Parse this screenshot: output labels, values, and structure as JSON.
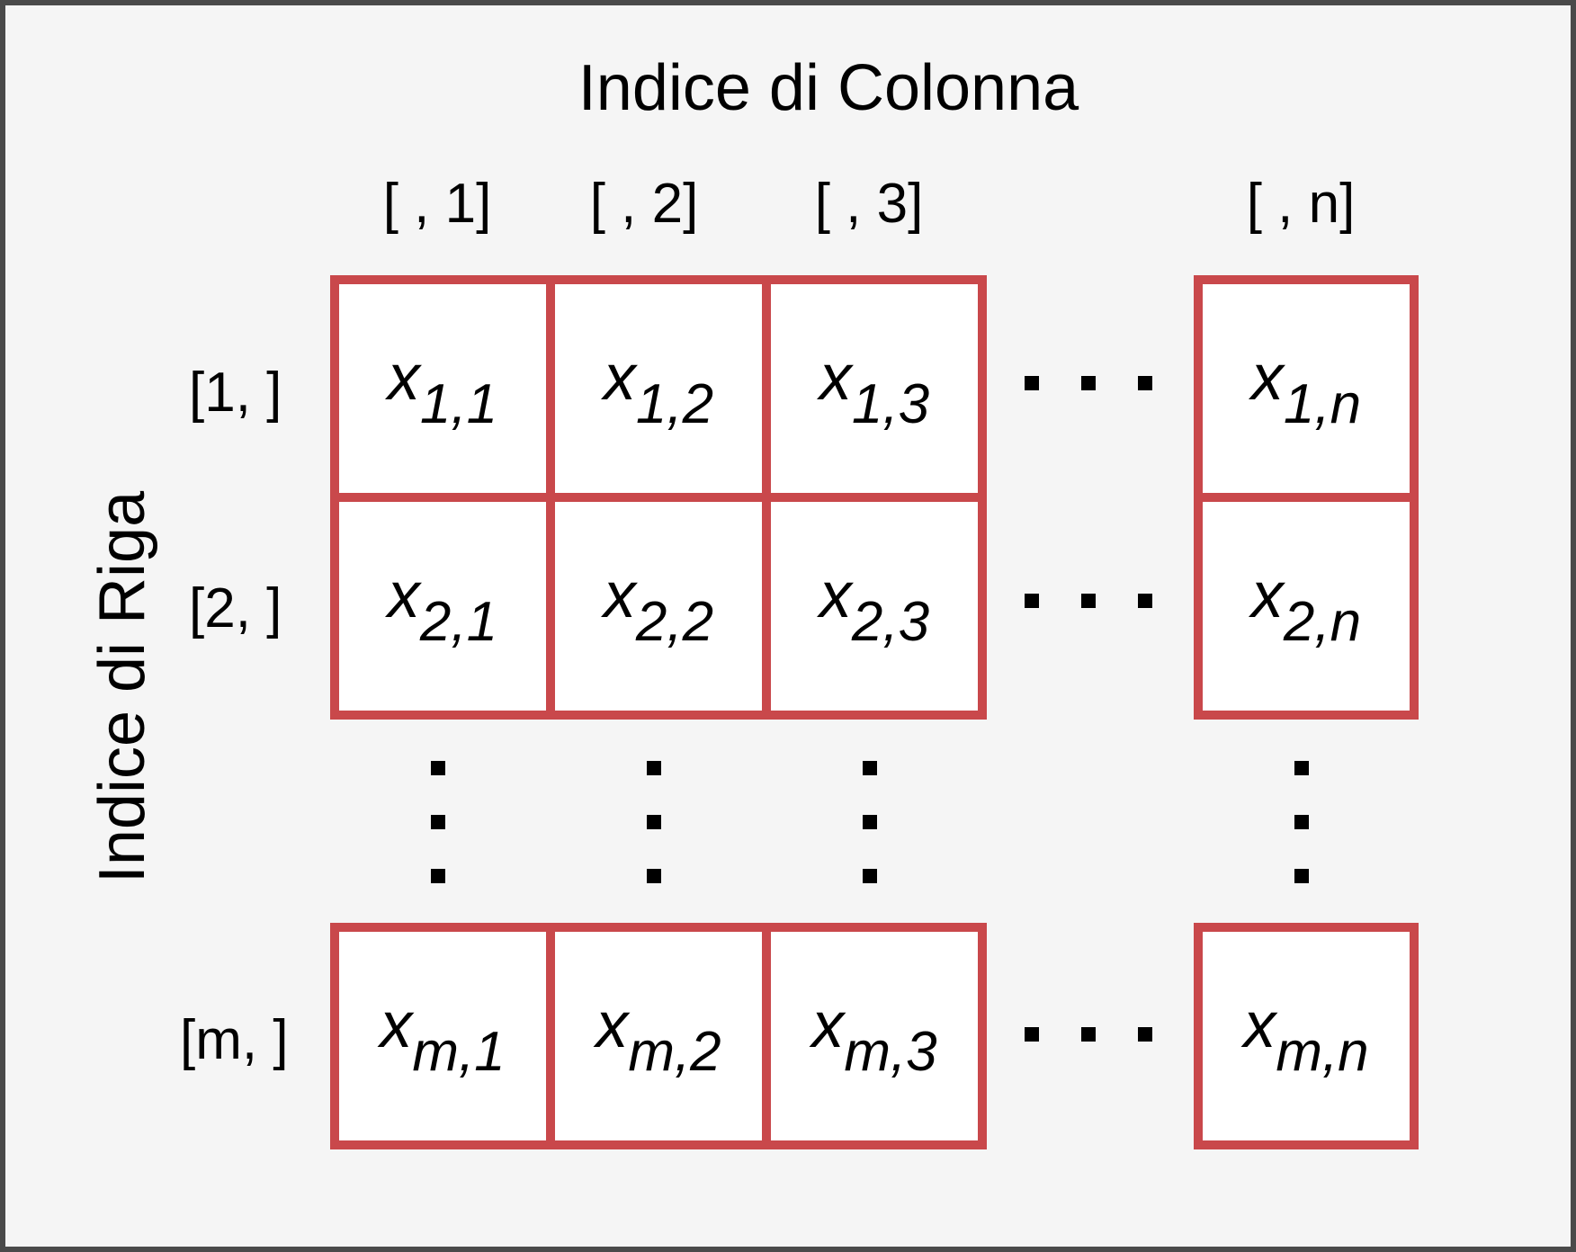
{
  "column_title": "Indice di Colonna",
  "row_title": "Indice di Riga",
  "column_labels": [
    "[ , 1]",
    "[ , 2]",
    "[ , 3]",
    "[ , n]"
  ],
  "row_labels": [
    "[1, ]",
    "[2, ]",
    "[m, ]"
  ],
  "cells": [
    [
      {
        "base": "x",
        "sub": "1,1"
      },
      {
        "base": "x",
        "sub": "1,2"
      },
      {
        "base": "x",
        "sub": "1,3"
      },
      {
        "base": "x",
        "sub": "1,n"
      }
    ],
    [
      {
        "base": "x",
        "sub": "2,1"
      },
      {
        "base": "x",
        "sub": "2,2"
      },
      {
        "base": "x",
        "sub": "2,3"
      },
      {
        "base": "x",
        "sub": "2,n"
      }
    ],
    [
      {
        "base": "x",
        "sub": "m,1"
      },
      {
        "base": "x",
        "sub": "m,2"
      },
      {
        "base": "x",
        "sub": "m,3"
      },
      {
        "base": "x",
        "sub": "m,n"
      }
    ]
  ],
  "colors": {
    "background": "#f5f5f5",
    "frame": "#4a4a4a",
    "cell_border": "#c9484b",
    "cell_fill": "#ffffff",
    "text": "#000000"
  }
}
